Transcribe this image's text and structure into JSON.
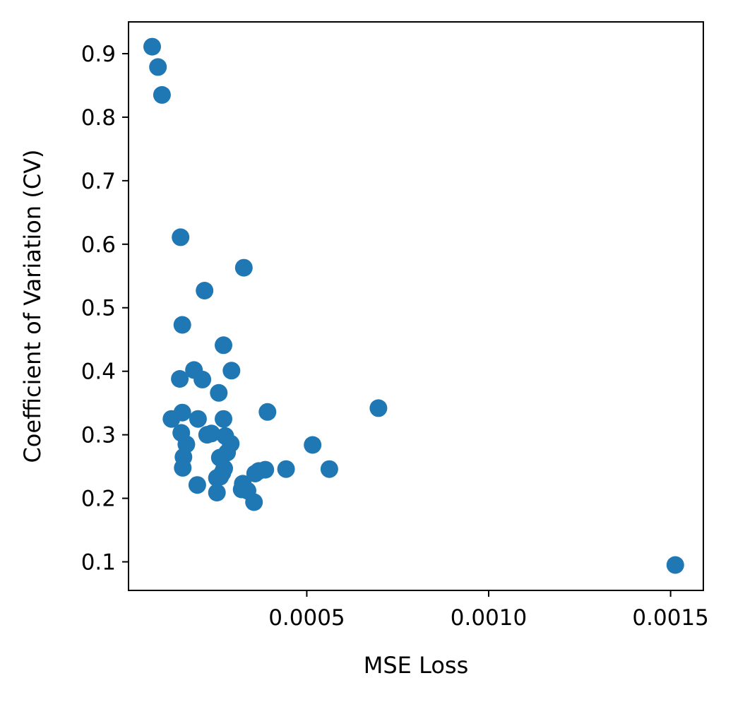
{
  "chart_data": {
    "type": "scatter",
    "title": "",
    "xlabel": "MSE Loss",
    "ylabel": "Coefficient of Variation (CV)",
    "xlim": [
      1e-05,
      0.00159
    ],
    "ylim": [
      0.055,
      0.95
    ],
    "xticks": [
      0.0005,
      0.001,
      0.0015
    ],
    "xtick_labels": [
      "0.0005",
      "0.0010",
      "0.0015"
    ],
    "yticks": [
      0.1,
      0.2,
      0.3,
      0.4,
      0.5,
      0.6,
      0.7,
      0.8,
      0.9
    ],
    "ytick_labels": [
      "0.1",
      "0.2",
      "0.3",
      "0.4",
      "0.5",
      "0.6",
      "0.7",
      "0.8",
      "0.9"
    ],
    "grid": false,
    "marker_color": "#1f77b4",
    "series": [
      {
        "points": [
          [
            7.5e-05,
            0.911
          ],
          [
            9.1e-05,
            0.879
          ],
          [
            0.000102,
            0.835
          ],
          [
            0.000153,
            0.611
          ],
          [
            0.000158,
            0.473
          ],
          [
            0.000151,
            0.388
          ],
          [
            0.000128,
            0.325
          ],
          [
            0.000158,
            0.335
          ],
          [
            0.000155,
            0.303
          ],
          [
            0.000169,
            0.285
          ],
          [
            0.000161,
            0.265
          ],
          [
            0.000159,
            0.248
          ],
          [
            0.00019,
            0.402
          ],
          [
            0.000213,
            0.387
          ],
          [
            0.000201,
            0.325
          ],
          [
            0.000226,
            0.3
          ],
          [
            0.000238,
            0.302
          ],
          [
            0.000199,
            0.221
          ],
          [
            0.000219,
            0.527
          ],
          [
            0.000258,
            0.366
          ],
          [
            0.000271,
            0.441
          ],
          [
            0.000293,
            0.401
          ],
          [
            0.000271,
            0.325
          ],
          [
            0.000276,
            0.298
          ],
          [
            0.000291,
            0.286
          ],
          [
            0.000281,
            0.272
          ],
          [
            0.000261,
            0.264
          ],
          [
            0.000273,
            0.247
          ],
          [
            0.000268,
            0.24
          ],
          [
            0.000262,
            0.234
          ],
          [
            0.000253,
            0.232
          ],
          [
            0.000253,
            0.209
          ],
          [
            0.000327,
            0.563
          ],
          [
            0.000324,
            0.223
          ],
          [
            0.000321,
            0.214
          ],
          [
            0.000337,
            0.212
          ],
          [
            0.000355,
            0.194
          ],
          [
            0.000358,
            0.239
          ],
          [
            0.000368,
            0.243
          ],
          [
            0.000386,
            0.245
          ],
          [
            0.000392,
            0.336
          ],
          [
            0.000443,
            0.246
          ],
          [
            0.000516,
            0.284
          ],
          [
            0.000562,
            0.246
          ],
          [
            0.000697,
            0.342
          ],
          [
            0.001513,
            0.095
          ]
        ]
      }
    ]
  }
}
